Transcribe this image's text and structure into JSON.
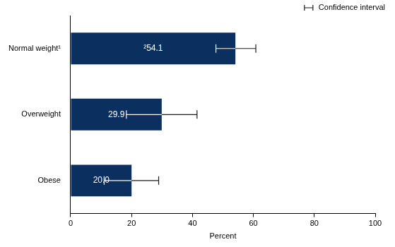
{
  "chart_data": {
    "type": "bar",
    "orientation": "horizontal",
    "categories": [
      "Normal weight¹",
      "Overweight",
      "Obese"
    ],
    "values": [
      54.1,
      29.9,
      20.0
    ],
    "value_labels": [
      "²54.1",
      "29.9",
      "20.0"
    ],
    "data_labels": true,
    "ci_low": [
      47.7,
      18.3,
      11.0
    ],
    "ci_high": [
      60.8,
      41.5,
      28.9
    ],
    "color": "#0b2f5f",
    "xlim": [
      0,
      100
    ],
    "xticks": [
      0,
      20,
      40,
      60,
      80,
      100
    ],
    "xlabel": "Percent",
    "grid": false,
    "legend": "upper right",
    "ci_label": "Confidence interval"
  }
}
